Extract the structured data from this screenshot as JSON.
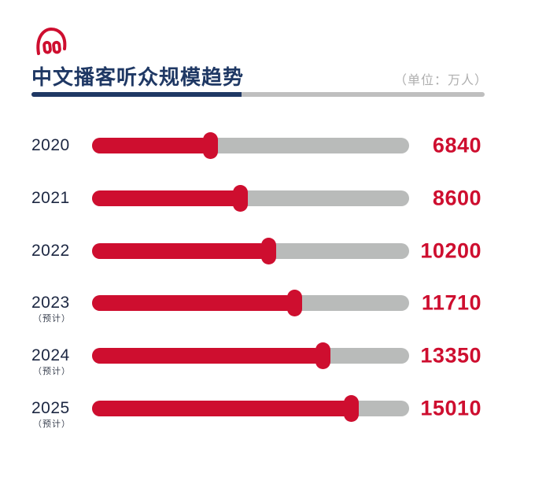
{
  "header": {
    "icon": "headphones-icon",
    "title": "中文播客听众规模趋势",
    "unit_label": "（单位：万人）"
  },
  "colors": {
    "accent_red": "#CE0E2F",
    "navy": "#1F3864",
    "track_gray": "#B9BBBA",
    "underline_gray": "#BFBFBF",
    "unit_text_gray": "#AFAFAF",
    "year_text": "#1C2742"
  },
  "chart_data": {
    "type": "bar",
    "orientation": "horizontal",
    "title": "中文播客听众规模趋势",
    "unit": "万人",
    "categories": [
      "2020",
      "2021",
      "2022",
      "2023",
      "2024",
      "2025"
    ],
    "values": [
      6840,
      8600,
      10200,
      11710,
      13350,
      15010
    ],
    "xlim": [
      0,
      18350
    ],
    "grid": false,
    "legend": false,
    "rows": [
      {
        "year": "2020",
        "note": "",
        "value": 6840
      },
      {
        "year": "2021",
        "note": "",
        "value": 8600
      },
      {
        "year": "2022",
        "note": "",
        "value": 10200
      },
      {
        "year": "2023",
        "note": "（预计）",
        "value": 11710
      },
      {
        "year": "2024",
        "note": "（预计）",
        "value": 13350
      },
      {
        "year": "2025",
        "note": "（预计）",
        "value": 15010
      }
    ]
  }
}
